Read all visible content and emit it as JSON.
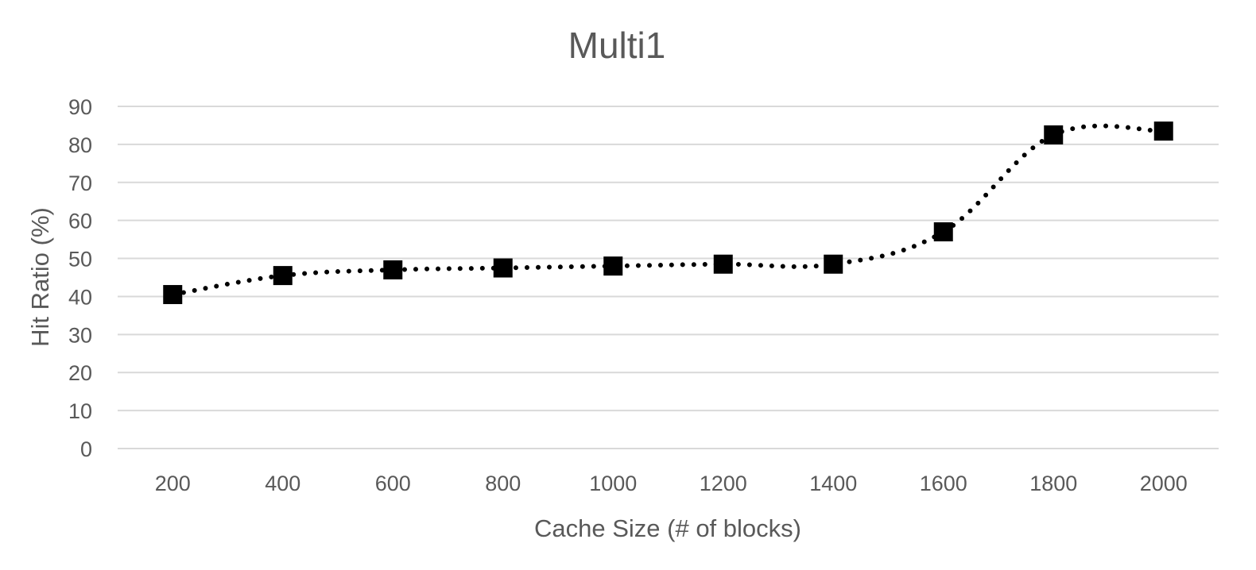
{
  "chart_data": {
    "type": "line",
    "title": "Multi1",
    "xlabel": "Cache Size (# of blocks)",
    "ylabel": "Hit Ratio (%)",
    "categories": [
      "200",
      "400",
      "600",
      "800",
      "1000",
      "1200",
      "1400",
      "1600",
      "1800",
      "2000"
    ],
    "series": [
      {
        "values": [
          40.5,
          45.5,
          47,
          47.5,
          48,
          48.5,
          48.5,
          57,
          82.5,
          83.5
        ],
        "color": "#000000",
        "line_style": "dotted",
        "marker": "square"
      }
    ],
    "ylim": [
      0,
      90
    ],
    "yticks": [
      0,
      10,
      20,
      30,
      40,
      50,
      60,
      70,
      80,
      90
    ],
    "grid": true,
    "legend": "none"
  }
}
